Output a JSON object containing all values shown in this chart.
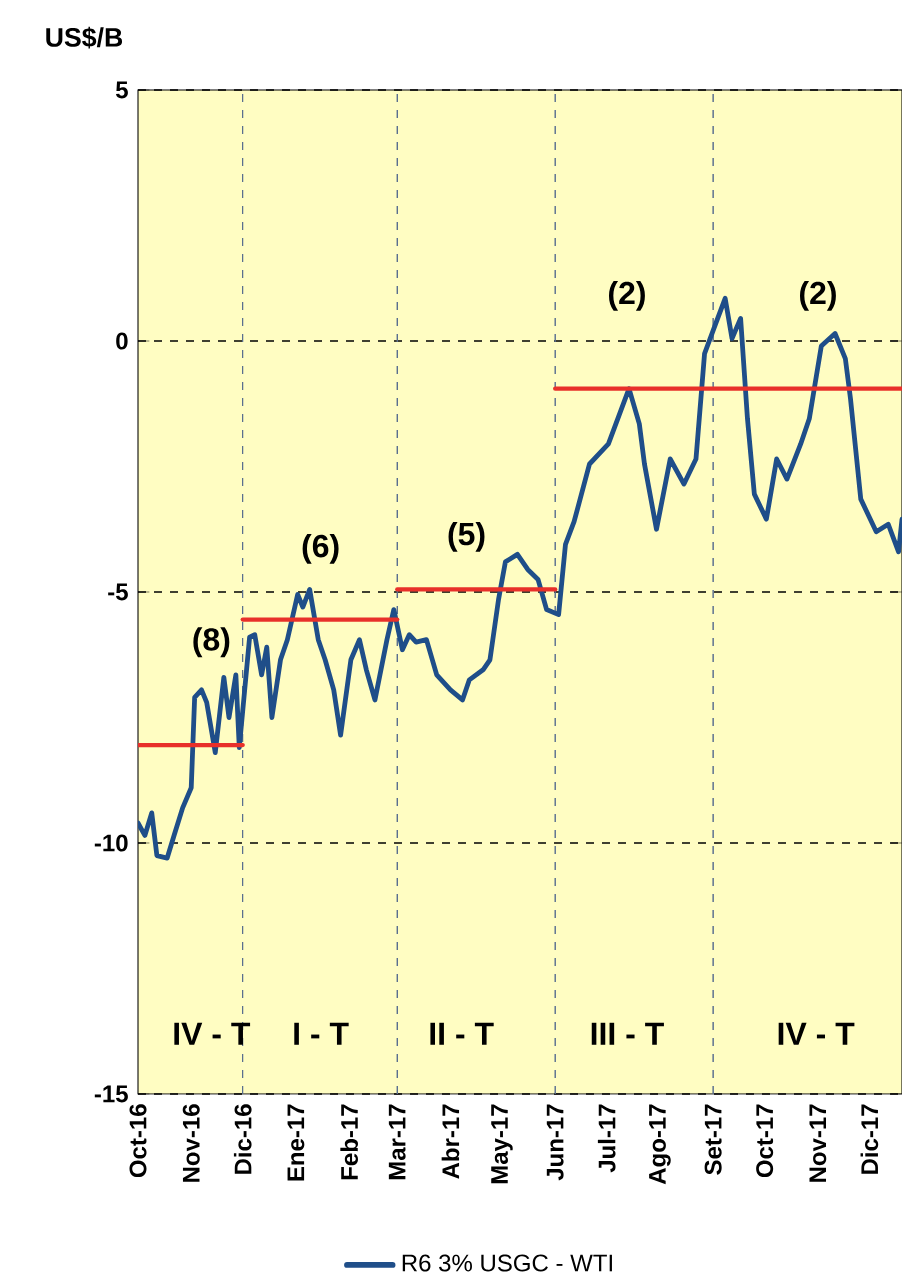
{
  "chart_data": {
    "type": "line",
    "ylabel": "US$/B",
    "xlim": [
      "2016-10-01",
      "2017-12-20"
    ],
    "ylim": [
      -15,
      5
    ],
    "xticks": [
      {
        "value": "2016-10-01",
        "label": "Oct-16"
      },
      {
        "value": "2016-11-01",
        "label": "Nov-16"
      },
      {
        "value": "2016-12-01",
        "label": "Dic-16"
      },
      {
        "value": "2017-01-01",
        "label": "Ene-17"
      },
      {
        "value": "2017-02-01",
        "label": "Feb-17"
      },
      {
        "value": "2017-03-01",
        "label": "Mar-17"
      },
      {
        "value": "2017-04-01",
        "label": "Abr-17"
      },
      {
        "value": "2017-05-01",
        "label": "May-17"
      },
      {
        "value": "2017-06-01",
        "label": "Jun-17"
      },
      {
        "value": "2017-07-01",
        "label": "Jul-17"
      },
      {
        "value": "2017-08-01",
        "label": "Ago-17"
      },
      {
        "value": "2017-09-01",
        "label": "Set-17"
      },
      {
        "value": "2017-10-01",
        "label": "Oct-17"
      },
      {
        "value": "2017-11-01",
        "label": "Nov-17"
      },
      {
        "value": "2017-12-01",
        "label": "Dic-17"
      }
    ],
    "yticks": [
      -15,
      -10,
      -5,
      0,
      5
    ],
    "grid": "y",
    "legend": "bottom",
    "marker": "none",
    "line_style": "solid",
    "series": [
      {
        "name": "R6 3% USGC - WTI",
        "color": "#1f4e89",
        "x": [
          "2016-10-01",
          "2016-10-05",
          "2016-10-09",
          "2016-10-12",
          "2016-10-18",
          "2016-10-22",
          "2016-10-27",
          "2016-11-01",
          "2016-11-03",
          "2016-11-07",
          "2016-11-10",
          "2016-11-15",
          "2016-11-20",
          "2016-11-23",
          "2016-11-27",
          "2016-11-29",
          "2016-12-05",
          "2016-12-08",
          "2016-12-12",
          "2016-12-15",
          "2016-12-18",
          "2016-12-23",
          "2016-12-27",
          "2017-01-02",
          "2017-01-05",
          "2017-01-09",
          "2017-01-14",
          "2017-01-18",
          "2017-01-23",
          "2017-01-27",
          "2017-02-02",
          "2017-02-07",
          "2017-02-11",
          "2017-02-16",
          "2017-02-23",
          "2017-02-27",
          "2017-03-04",
          "2017-03-08",
          "2017-03-12",
          "2017-03-18",
          "2017-03-24",
          "2017-04-01",
          "2017-04-08",
          "2017-04-12",
          "2017-04-20",
          "2017-04-24",
          "2017-04-29",
          "2017-05-03",
          "2017-05-10",
          "2017-05-16",
          "2017-05-22",
          "2017-05-27",
          "2017-06-03",
          "2017-06-07",
          "2017-06-12",
          "2017-06-21",
          "2017-07-02",
          "2017-07-14",
          "2017-07-20",
          "2017-07-23",
          "2017-07-30",
          "2017-08-07",
          "2017-08-15",
          "2017-08-22",
          "2017-08-27",
          "2017-09-02",
          "2017-09-08",
          "2017-09-12",
          "2017-09-17",
          "2017-09-21",
          "2017-09-25",
          "2017-10-02",
          "2017-10-08",
          "2017-10-14",
          "2017-10-22",
          "2017-10-27",
          "2017-11-03",
          "2017-11-11",
          "2017-11-17",
          "2017-11-20",
          "2017-11-26",
          "2017-12-05",
          "2017-12-12",
          "2017-12-18",
          "2017-12-20"
        ],
        "values": [
          -9.6,
          -9.85,
          -9.4,
          -10.25,
          -10.3,
          -9.85,
          -9.3,
          -8.9,
          -7.1,
          -6.95,
          -7.2,
          -8.2,
          -6.7,
          -7.5,
          -6.65,
          -8.1,
          -5.9,
          -5.85,
          -6.65,
          -6.1,
          -7.5,
          -6.35,
          -5.95,
          -5.05,
          -5.3,
          -4.95,
          -5.95,
          -6.35,
          -6.95,
          -7.85,
          -6.35,
          -5.95,
          -6.55,
          -7.15,
          -5.95,
          -5.35,
          -6.15,
          -5.85,
          -6.0,
          -5.95,
          -6.65,
          -6.95,
          -7.15,
          -6.75,
          -6.55,
          -6.35,
          -5.15,
          -4.4,
          -4.25,
          -4.55,
          -4.75,
          -5.35,
          -5.45,
          -4.05,
          -3.6,
          -2.45,
          -2.05,
          -0.95,
          -1.65,
          -2.45,
          -3.75,
          -2.35,
          -2.85,
          -2.35,
          -0.25,
          0.3,
          0.85,
          0.05,
          0.45,
          -1.55,
          -3.05,
          -3.55,
          -2.35,
          -2.75,
          -2.05,
          -1.55,
          -0.1,
          0.15,
          -0.35,
          -1.15,
          -3.15,
          -3.8,
          -3.65,
          -4.2,
          -3.55
        ]
      },
      {
        "color": "#e8302a",
        "x": [
          "2016-10-01",
          "2016-12-01"
        ],
        "values": [
          -8.05,
          -8.05
        ]
      },
      {
        "color": "#e8302a",
        "x": [
          "2016-12-01",
          "2017-03-01"
        ],
        "values": [
          -5.55,
          -5.55
        ]
      },
      {
        "color": "#e8302a",
        "x": [
          "2017-03-01",
          "2017-06-01"
        ],
        "values": [
          -4.95,
          -4.95
        ]
      },
      {
        "color": "#e8302a",
        "x": [
          "2017-06-01",
          "2017-12-20"
        ],
        "values": [
          -0.95,
          -0.95
        ]
      }
    ],
    "ref_lines": [
      {
        "axis": "x",
        "value": "2016-12-01",
        "color": "#5a6f8f",
        "line_style": "dashed"
      },
      {
        "axis": "x",
        "value": "2017-03-01",
        "color": "#5a6f8f",
        "line_style": "dashed"
      },
      {
        "axis": "x",
        "value": "2017-06-01",
        "color": "#5a6f8f",
        "line_style": "dashed"
      },
      {
        "axis": "x",
        "value": "2017-09-01",
        "color": "#5a6f8f",
        "line_style": "dashed"
      }
    ],
    "annotations": [
      "(8)",
      "(6)",
      "(5)",
      "(2)",
      "(2)",
      "IV - T",
      "I - T",
      "II - T",
      "III - T",
      "IV - T"
    ]
  }
}
